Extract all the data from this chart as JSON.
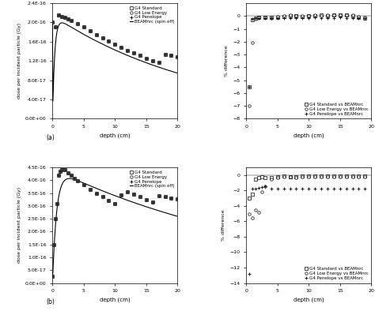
{
  "panel_a_label": "(a)",
  "panel_b_label": "(b)",
  "xlabel": "depth (cm)",
  "ylabel_dose": "dose per incident particle (Gy)",
  "ylabel_diff": "% difference",
  "legend_dose": [
    "G4 Standard",
    "G4 Low Energy",
    "G4 Penelope",
    "BEAMnrc (spin off)"
  ],
  "legend_diff": [
    "G4 Standard vs BEAMnrc",
    "G4 Low Energy vs BEAMnrc",
    "G4 Penelope vs BEAMnrc"
  ],
  "x_a": [
    0.0,
    0.5,
    1.0,
    1.5,
    2.0,
    2.5,
    3.0,
    4.0,
    5.0,
    6.0,
    7.0,
    8.0,
    9.0,
    10.0,
    11.0,
    12.0,
    13.0,
    14.0,
    15.0,
    16.0,
    17.0,
    18.0,
    19.0,
    20.0
  ],
  "dose_a": [
    2e-16,
    1.9e-16,
    2.15e-16,
    2.12e-16,
    2.1e-16,
    2.07e-16,
    2.04e-16,
    1.97e-16,
    1.9e-16,
    1.83e-16,
    1.75e-16,
    1.68e-16,
    1.61e-16,
    1.54e-16,
    1.48e-16,
    1.42e-16,
    1.36e-16,
    1.31e-16,
    1.26e-16,
    1.21e-16,
    1.17e-16,
    1.34e-16,
    1.32e-16,
    1.29e-16
  ],
  "ylim_a": [
    0.0,
    2.4e-16
  ],
  "yticks_a": [
    0.0,
    4e-17,
    8e-17,
    1.2e-16,
    1.6e-16,
    2e-16,
    2.4e-16
  ],
  "ytick_labels_a": [
    "0.0E+00",
    "4.0E-17",
    "8.0E-17",
    "1.2E-16",
    "1.6E-16",
    "2.0E-16",
    "2.4E-16"
  ],
  "x_b": [
    0.0,
    0.25,
    0.5,
    0.75,
    1.0,
    1.25,
    1.5,
    2.0,
    2.5,
    3.0,
    3.5,
    4.0,
    5.0,
    6.0,
    7.0,
    8.0,
    9.0,
    10.0,
    11.0,
    12.0,
    13.0,
    14.0,
    15.0,
    16.0,
    17.0,
    18.0,
    19.0,
    20.0
  ],
  "dose_b": [
    2.5e-17,
    1.5e-16,
    2.5e-16,
    3.1e-16,
    4.2e-16,
    4.35e-16,
    4.42e-16,
    4.4e-16,
    4.3e-16,
    4.18e-16,
    4.08e-16,
    3.98e-16,
    3.82e-16,
    3.65e-16,
    3.5e-16,
    3.35e-16,
    3.22e-16,
    3.1e-16,
    3.42e-16,
    3.55e-16,
    3.45e-16,
    3.35e-16,
    3.25e-16,
    3.15e-16,
    3.38e-16,
    3.35e-16,
    3.3e-16,
    3.28e-16
  ],
  "ylim_b": [
    0.0,
    4.5e-16
  ],
  "yticks_b": [
    0.0,
    5e-17,
    1e-16,
    1.5e-16,
    2e-16,
    2.5e-16,
    3e-16,
    3.5e-16,
    4e-16,
    4.5e-16
  ],
  "ytick_labels_b": [
    "0.0E+00",
    "5.0E-17",
    "1.0E-16",
    "1.5E-16",
    "2.0E-16",
    "2.5E-16",
    "3.0E-16",
    "3.5E-16",
    "4.0E-16",
    "4.5E-16"
  ],
  "diff_x_a": [
    0.5,
    1.0,
    1.5,
    2.0,
    3.0,
    4.0,
    5.0,
    6.0,
    7.0,
    8.0,
    9.0,
    10.0,
    11.0,
    12.0,
    13.0,
    14.0,
    15.0,
    16.0,
    17.0,
    18.0,
    19.0
  ],
  "diff_a_std": [
    -5.5,
    -0.3,
    -0.15,
    -0.1,
    -0.1,
    -0.1,
    -0.1,
    -0.05,
    0.0,
    0.0,
    -0.05,
    0.0,
    0.0,
    0.05,
    0.0,
    0.05,
    0.1,
    0.05,
    0.0,
    -0.1,
    -0.15
  ],
  "diff_a_low": [
    -7.0,
    -2.1,
    -0.25,
    -0.1,
    -0.1,
    -0.15,
    -0.05,
    0.0,
    0.05,
    0.0,
    0.0,
    0.0,
    0.05,
    0.0,
    0.05,
    0.05,
    0.1,
    0.05,
    0.05,
    -0.05,
    -0.1
  ],
  "diff_a_pen": [
    -5.5,
    -0.25,
    -0.2,
    -0.15,
    -0.15,
    -0.2,
    -0.15,
    -0.2,
    -0.15,
    -0.15,
    -0.15,
    -0.15,
    -0.1,
    -0.15,
    -0.15,
    -0.15,
    -0.1,
    -0.15,
    -0.15,
    -0.2,
    -0.2
  ],
  "ylim_a_diff": [
    -8,
    1
  ],
  "yticks_a_diff": [
    0,
    -1,
    -2,
    -3,
    -4,
    -5,
    -6,
    -7,
    -8
  ],
  "diff_x_b": [
    0.5,
    1.0,
    1.5,
    2.0,
    2.5,
    3.0,
    4.0,
    5.0,
    6.0,
    7.0,
    8.0,
    9.0,
    10.0,
    11.0,
    12.0,
    13.0,
    14.0,
    15.0,
    16.0,
    17.0,
    18.0,
    19.0
  ],
  "diff_b_std": [
    -3.0,
    -2.5,
    -0.5,
    -0.3,
    -0.25,
    -0.3,
    -0.3,
    -0.2,
    -0.15,
    -0.2,
    -0.2,
    -0.15,
    -0.15,
    -0.15,
    -0.15,
    -0.1,
    -0.1,
    -0.1,
    -0.1,
    -0.1,
    -0.1,
    -0.1
  ],
  "diff_b_low": [
    -5.0,
    -5.5,
    -4.5,
    -4.8,
    -2.2,
    -1.5,
    -0.5,
    -0.3,
    -0.25,
    -0.25,
    -0.3,
    -0.25,
    -0.25,
    -0.25,
    -0.25,
    -0.25,
    -0.25,
    -0.25,
    -0.25,
    -0.25,
    -0.25,
    -0.25
  ],
  "diff_b_pen": [
    -12.8,
    -1.8,
    -1.8,
    -1.7,
    -1.6,
    -1.5,
    -1.8,
    -1.8,
    -1.8,
    -1.8,
    -1.8,
    -1.8,
    -1.8,
    -1.8,
    -1.8,
    -1.8,
    -1.8,
    -1.8,
    -1.8,
    -1.8,
    -1.8,
    -1.8
  ],
  "ylim_b_diff": [
    -14,
    1
  ],
  "yticks_b_diff": [
    0,
    -2,
    -4,
    -6,
    -8,
    -10,
    -12,
    -14
  ],
  "xticks": [
    0,
    5,
    10,
    15,
    20
  ],
  "xlim": [
    0,
    20
  ]
}
